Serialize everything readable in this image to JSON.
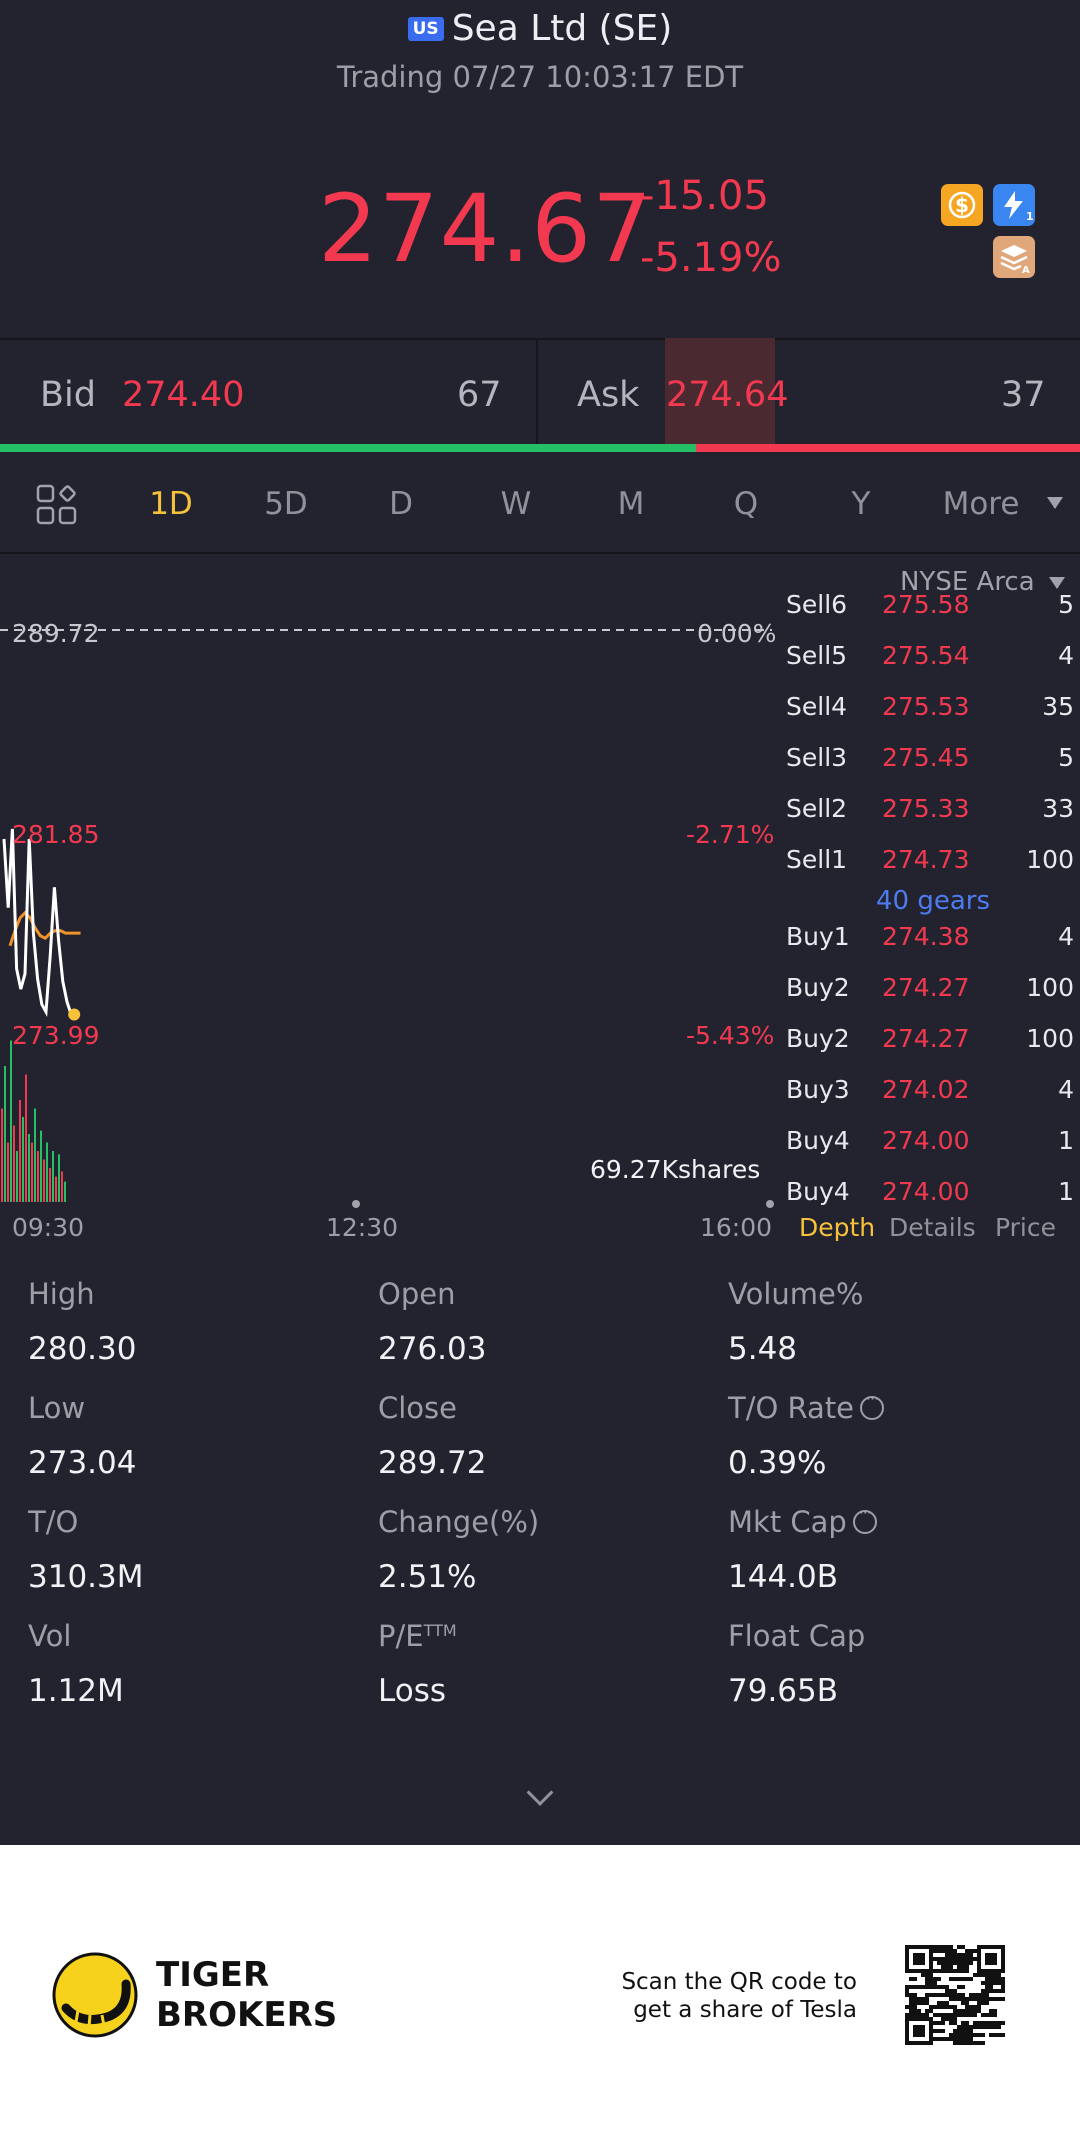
{
  "header": {
    "market_badge": "US",
    "title": "Sea Ltd (SE)",
    "status": "Trading 07/27 10:03:17 EDT",
    "price": "274.67",
    "change": "-15.05",
    "change_pct": "-5.19%",
    "icons": [
      "dollar-icon",
      "lightning-icon",
      "stack-icon"
    ]
  },
  "quote": {
    "bid_label": "Bid",
    "bid_price": "274.40",
    "bid_qty": "67",
    "ask_label": "Ask",
    "ask_price": "274.64",
    "ask_qty": "37",
    "bid_ratio": 0.644
  },
  "tabs": [
    "1D",
    "5D",
    "D",
    "W",
    "M",
    "Q",
    "Y",
    "More"
  ],
  "active_tab": "1D",
  "chart": {
    "exchange": "NYSE Arca",
    "prev_close_label": "289.72",
    "prev_close_pct": "0.00%",
    "mid_label": "281.85",
    "mid_pct": "-2.71%",
    "low_label": "273.99",
    "low_pct": "-5.43%",
    "volume_label": "69.27Kshares",
    "time_start": "09:30",
    "time_mid": "12:30",
    "time_end": "16:00"
  },
  "chart_data": {
    "type": "line",
    "ylim": [
      273.99,
      289.72
    ],
    "price_points": [
      281.5,
      278.8,
      281.9,
      276.4,
      275.6,
      276.2,
      281.5,
      277.8,
      276.0,
      275.0,
      274.7,
      276.9,
      279.6,
      277.5,
      275.9,
      275.1,
      274.6
    ],
    "avg_points": [
      277.3,
      277.9,
      278.4,
      278.6,
      278.4,
      278.0,
      277.7,
      277.6,
      277.8,
      277.9,
      277.9,
      277.8,
      277.8,
      277.8,
      277.8
    ],
    "volume_bars": [
      0.55,
      0.8,
      0.35,
      0.95,
      0.45,
      0.3,
      0.6,
      0.5,
      0.75,
      0.4,
      0.35,
      0.55,
      0.3,
      0.42,
      0.25,
      0.35,
      0.2,
      0.3,
      0.15,
      0.28,
      0.18,
      0.12
    ]
  },
  "orderbook": {
    "rows": [
      {
        "name": "Sell6",
        "price": "275.58",
        "qty": "5"
      },
      {
        "name": "Sell5",
        "price": "275.54",
        "qty": "4"
      },
      {
        "name": "Sell4",
        "price": "275.53",
        "qty": "35"
      },
      {
        "name": "Sell3",
        "price": "275.45",
        "qty": "5"
      },
      {
        "name": "Sell2",
        "price": "275.33",
        "qty": "33"
      },
      {
        "name": "Sell1",
        "price": "274.73",
        "qty": "100"
      },
      {
        "name": "Buy1",
        "price": "274.38",
        "qty": "4"
      },
      {
        "name": "Buy2",
        "price": "274.27",
        "qty": "100"
      },
      {
        "name": "Buy2",
        "price": "274.27",
        "qty": "100"
      },
      {
        "name": "Buy3",
        "price": "274.02",
        "qty": "4"
      },
      {
        "name": "Buy4",
        "price": "274.00",
        "qty": "1"
      },
      {
        "name": "Buy4",
        "price": "274.00",
        "qty": "1"
      }
    ],
    "gears": "40 gears",
    "tabs": [
      "Depth",
      "Details",
      "Price"
    ]
  },
  "stats": [
    {
      "label": "High",
      "value": "280.30"
    },
    {
      "label": "Open",
      "value": "276.03"
    },
    {
      "label": "Volume%",
      "value": "5.48"
    },
    {
      "label": "Low",
      "value": "273.04"
    },
    {
      "label": "Close",
      "value": "289.72"
    },
    {
      "label": "T/O Rate",
      "value": "0.39%"
    },
    {
      "label": "T/O",
      "value": "310.3M"
    },
    {
      "label": "Change(%)",
      "value": "2.51%"
    },
    {
      "label": "Mkt Cap",
      "value": "144.0B"
    },
    {
      "label": "Vol",
      "value": "1.12M"
    },
    {
      "label": "P/E",
      "value": "Loss"
    },
    {
      "label": "Float Cap",
      "value": "79.65B"
    }
  ],
  "pe_suffix": "TTM",
  "footer": {
    "brand_line1": "TIGER",
    "brand_line2": "BROKERS",
    "scan_line1": "Scan the QR code to",
    "scan_line2": "get a share of Tesla"
  },
  "colors": {
    "background": "#22232e",
    "down": "#f2394f",
    "up": "#25c066",
    "accent": "#f7c23a",
    "link": "#4e7bf0"
  }
}
